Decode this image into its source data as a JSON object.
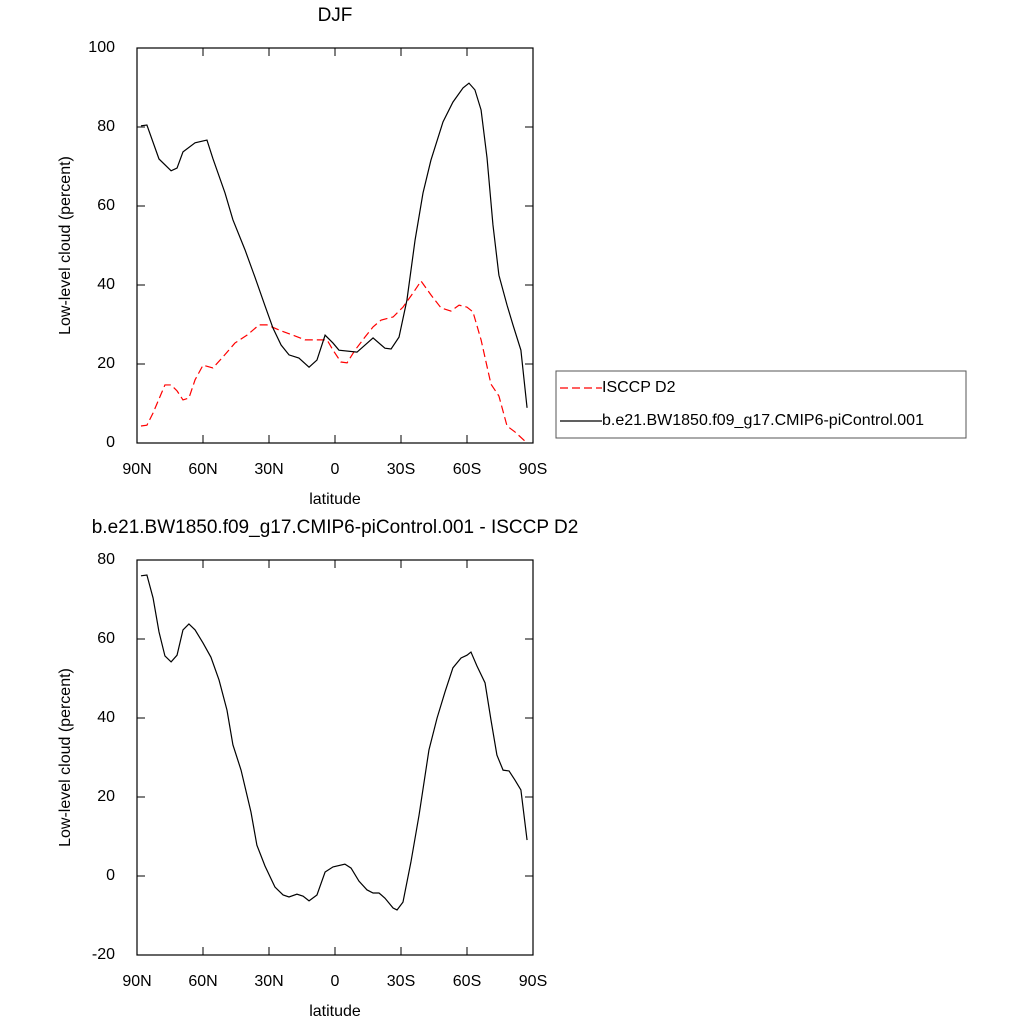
{
  "chart_data": [
    {
      "type": "line",
      "title": "DJF",
      "xlabel": "latitude",
      "ylabel": "Low-level cloud (percent)",
      "xlim": [
        90,
        -90
      ],
      "xticks": [
        {
          "value": 90,
          "label": "90N"
        },
        {
          "value": 60,
          "label": "60N"
        },
        {
          "value": 30,
          "label": "30N"
        },
        0,
        {
          "value": -30,
          "label": "30S"
        },
        {
          "value": -60,
          "label": "60S"
        },
        {
          "value": -90,
          "label": "90S"
        }
      ],
      "ylim": [
        0,
        100
      ],
      "yticks": [
        0,
        20,
        40,
        60,
        80,
        100
      ],
      "legend": "right",
      "series": [
        {
          "name": "ISCCP D2",
          "color": "#ff0000",
          "line_style": "dashed",
          "x": [
            88.2,
            85.5,
            82.7,
            77.3,
            74.5,
            71.8,
            69.1,
            66.4,
            63.6,
            60,
            55.5,
            50.9,
            45.5,
            40,
            34.5,
            30.9,
            24.5,
            19.1,
            13.6,
            7.3,
            3.6,
            0.9,
            -2.7,
            -5.5,
            -9.1,
            -13.6,
            -17.3,
            -20.9,
            -26.4,
            -30.9,
            -35.5,
            -39.1,
            -43.6,
            -48.2,
            -52.7,
            -56.4,
            -60,
            -62.7,
            -66.4,
            -70.9,
            -74.5,
            -78.2,
            -81.8,
            -87.3
          ],
          "values": [
            4.3,
            4.5,
            7.6,
            14.7,
            14.7,
            13.2,
            10.9,
            11.4,
            16,
            19.7,
            19,
            21.8,
            25.3,
            27.3,
            29.9,
            29.9,
            28.4,
            27.3,
            26.1,
            26.1,
            26.1,
            23.5,
            20.5,
            20.3,
            23.5,
            26.8,
            29.4,
            31.1,
            31.9,
            34.4,
            38,
            41,
            37.5,
            34.2,
            33.4,
            34.9,
            34.4,
            33.2,
            26.1,
            14.9,
            11.9,
            4.3,
            2.8,
            0
          ]
        },
        {
          "name": "b.e21.BW1850.f09_g17.CMIP6-piControl.001",
          "color": "#000000",
          "line_style": "solid",
          "x": [
            88.2,
            85.5,
            80,
            74.5,
            71.8,
            69.1,
            63.6,
            58.2,
            55.5,
            50,
            46.4,
            40.9,
            36.4,
            31.8,
            28.2,
            24.5,
            20.9,
            16.4,
            11.8,
            8.2,
            4.5,
            0.9,
            -1.8,
            -10,
            -17.3,
            -22.7,
            -25.5,
            -29.1,
            -32.7,
            -36.4,
            -40,
            -43.6,
            -49.1,
            -53.6,
            -58.2,
            -60.9,
            -63.6,
            -66.4,
            -69.1,
            -71.8,
            -74.5,
            -78.2,
            -80.9,
            -84.5,
            -87.3
          ],
          "values": [
            80.3,
            80.5,
            71.9,
            68.9,
            69.6,
            73.7,
            76,
            76.7,
            72,
            63.3,
            56.5,
            48.9,
            42,
            34.7,
            29.1,
            24.8,
            22.3,
            21.5,
            19.2,
            21,
            27.3,
            25.3,
            23.5,
            23,
            26.6,
            24,
            23.8,
            26.8,
            36.2,
            51.4,
            63.3,
            71.6,
            81.3,
            86.3,
            89.9,
            91.1,
            89.4,
            84.3,
            72.2,
            55.2,
            42.5,
            34.9,
            29.9,
            23.5,
            8.9
          ]
        }
      ]
    },
    {
      "type": "line",
      "title": "b.e21.BW1850.f09_g17.CMIP6-piControl.001 - ISCCP D2",
      "xlabel": "latitude",
      "ylabel": "Low-level cloud (percent)",
      "xlim": [
        90,
        -90
      ],
      "xticks": [
        {
          "value": 90,
          "label": "90N"
        },
        {
          "value": 60,
          "label": "60N"
        },
        {
          "value": 30,
          "label": "30N"
        },
        0,
        {
          "value": -30,
          "label": "30S"
        },
        {
          "value": -60,
          "label": "60S"
        },
        {
          "value": -90,
          "label": "90S"
        }
      ],
      "ylim": [
        -20,
        80
      ],
      "yticks": [
        -20,
        0,
        20,
        40,
        60,
        80
      ],
      "series": [
        {
          "color": "#000000",
          "line_style": "solid",
          "x": [
            88.2,
            85.5,
            82.7,
            80,
            77.3,
            74.5,
            71.8,
            69.1,
            66.4,
            63.6,
            60,
            56.4,
            52.7,
            49.1,
            46.4,
            42.7,
            38.2,
            35.5,
            31.8,
            27.3,
            23.6,
            20.9,
            17.3,
            14.5,
            11.8,
            8.2,
            4.5,
            0.9,
            -4.5,
            -7.3,
            -10.9,
            -14.5,
            -17.3,
            -20,
            -22.7,
            -26.4,
            -28.2,
            -30.9,
            -34.5,
            -38.2,
            -42.7,
            -46.4,
            -50,
            -53.6,
            -57.3,
            -60,
            -61.8,
            -64.5,
            -68.2,
            -70.9,
            -73.6,
            -76.4,
            -79.1,
            -81.8,
            -84.5,
            -87.3
          ],
          "values": [
            76,
            76.2,
            70.4,
            61.8,
            55.7,
            54.2,
            55.9,
            62.3,
            63.8,
            62.3,
            59,
            55.4,
            49.6,
            42,
            33.2,
            26.8,
            16.2,
            7.8,
            2.5,
            -2.8,
            -4.8,
            -5.3,
            -4.6,
            -5.1,
            -6.3,
            -4.8,
            1,
            2.3,
            3,
            2,
            -1.3,
            -3.5,
            -4.3,
            -4.3,
            -5.6,
            -8.1,
            -8.6,
            -6.6,
            3.5,
            15.4,
            31.9,
            40,
            46.6,
            52.7,
            55.2,
            55.9,
            56.7,
            53.2,
            48.9,
            39.5,
            30.6,
            26.8,
            26.6,
            24.3,
            21.8,
            9.1
          ]
        }
      ]
    }
  ]
}
